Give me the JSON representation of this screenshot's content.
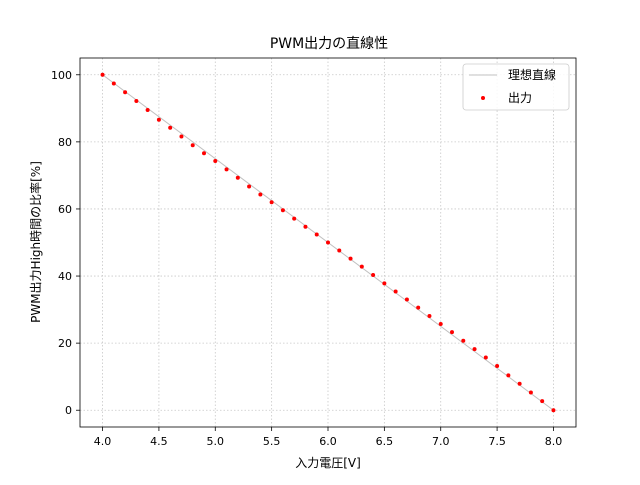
{
  "chart_data": {
    "type": "scatter",
    "title": "PWM出力の直線性",
    "xlabel": "入力電圧[V]",
    "ylabel": "PWM出力High時間の比率[%]",
    "xlim": [
      3.8,
      8.2
    ],
    "ylim": [
      -5,
      105
    ],
    "xticks": [
      "4.0",
      "4.5",
      "5.0",
      "5.5",
      "6.0",
      "6.5",
      "7.0",
      "7.5",
      "8.0"
    ],
    "yticks": [
      "0",
      "20",
      "40",
      "60",
      "80",
      "100"
    ],
    "grid": true,
    "legend_position": "top-right",
    "series": [
      {
        "name": "理想直線",
        "kind": "line",
        "color": "#c0c0c0",
        "x": [
          4.0,
          8.0
        ],
        "y": [
          100,
          0
        ]
      },
      {
        "name": "出力",
        "kind": "scatter",
        "color": "#ff0000",
        "x": [
          4.0,
          4.1,
          4.2,
          4.3,
          4.4,
          4.5,
          4.6,
          4.7,
          4.8,
          4.9,
          5.0,
          5.1,
          5.2,
          5.3,
          5.4,
          5.5,
          5.6,
          5.7,
          5.8,
          5.9,
          6.0,
          6.1,
          6.2,
          6.3,
          6.4,
          6.5,
          6.6,
          6.7,
          6.8,
          6.9,
          7.0,
          7.1,
          7.2,
          7.3,
          7.4,
          7.5,
          7.6,
          7.7,
          7.8,
          7.9,
          8.0
        ],
        "y": [
          100,
          97.4,
          94.8,
          92.2,
          89.5,
          86.6,
          84.2,
          81.6,
          79.0,
          76.6,
          74.3,
          71.8,
          69.3,
          66.7,
          64.3,
          62.0,
          59.6,
          57.1,
          54.7,
          52.4,
          50.0,
          47.6,
          45.2,
          42.8,
          40.3,
          37.8,
          35.4,
          33.0,
          30.6,
          28.1,
          25.7,
          23.3,
          20.7,
          18.2,
          15.7,
          13.2,
          10.4,
          7.9,
          5.3,
          2.7,
          0.0
        ]
      }
    ]
  }
}
